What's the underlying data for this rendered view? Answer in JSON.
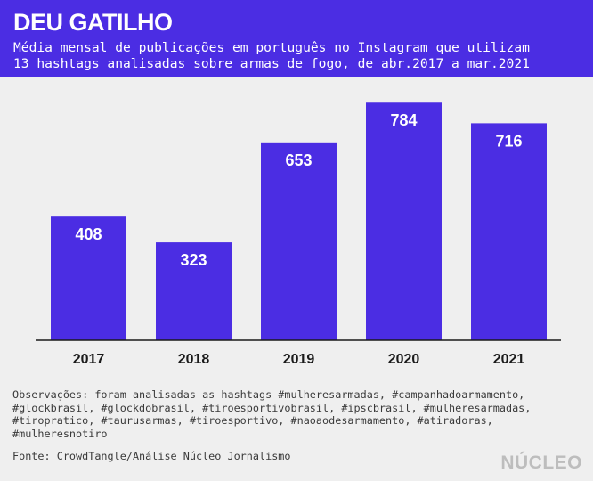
{
  "header": {
    "title": "DEU GATILHO",
    "subtitle_lines": [
      "Média mensal de publicações em português no Instagram que utilizam",
      "13 hashtags analisadas sobre armas de fogo, de abr.2017 a mar.2021"
    ]
  },
  "chart_data": {
    "type": "bar",
    "categories": [
      "2017",
      "2018",
      "2019",
      "2020",
      "2021"
    ],
    "values": [
      408,
      323,
      653,
      784,
      716
    ],
    "data_labels": [
      "408",
      "323",
      "653",
      "784",
      "716"
    ],
    "ylim": [
      0,
      820
    ],
    "grid": false,
    "legend": "none",
    "bar_color": "#4b2de3"
  },
  "notes_lines": [
    "Observações: foram analisadas as hashtags #mulheresarmadas, #campanhadoarmamento,",
    "#glockbrasil, #glockdobrasil, #tiroesportivobrasil, #ipscbrasil, #mulheresarmadas,",
    "#tiropratico, #taurusarmas, #tiroesportivo, #naoaodesarmamento, #atiradoras,",
    "#mulheresnotiro"
  ],
  "source": "Fonte: CrowdTangle/Análise Núcleo Jornalismo",
  "logo_text": "NÚCLEO",
  "colors": {
    "accent": "#4b2de3",
    "background": "#efefef",
    "text": "#1a1a1a"
  }
}
